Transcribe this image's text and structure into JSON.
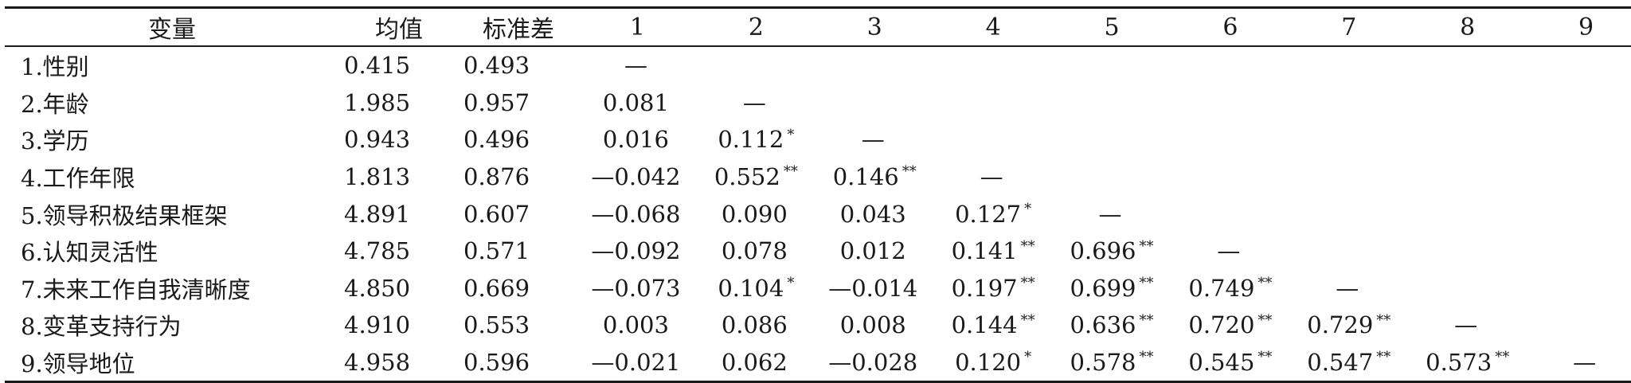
{
  "table": {
    "headers": [
      "变量",
      "均值",
      "标准差",
      "1",
      "2",
      "3",
      "4",
      "5",
      "6",
      "7",
      "8",
      "9"
    ],
    "rows": [
      {
        "label": "1.性别",
        "mean": "0.415",
        "sd": "0.493",
        "cells": [
          {
            "v": "—",
            "s": ""
          },
          {
            "v": "",
            "s": ""
          },
          {
            "v": "",
            "s": ""
          },
          {
            "v": "",
            "s": ""
          },
          {
            "v": "",
            "s": ""
          },
          {
            "v": "",
            "s": ""
          },
          {
            "v": "",
            "s": ""
          },
          {
            "v": "",
            "s": ""
          },
          {
            "v": "",
            "s": ""
          }
        ]
      },
      {
        "label": "2.年龄",
        "mean": "1.985",
        "sd": "0.957",
        "cells": [
          {
            "v": "0.081",
            "s": ""
          },
          {
            "v": "—",
            "s": ""
          },
          {
            "v": "",
            "s": ""
          },
          {
            "v": "",
            "s": ""
          },
          {
            "v": "",
            "s": ""
          },
          {
            "v": "",
            "s": ""
          },
          {
            "v": "",
            "s": ""
          },
          {
            "v": "",
            "s": ""
          },
          {
            "v": "",
            "s": ""
          }
        ]
      },
      {
        "label": "3.学历",
        "mean": "0.943",
        "sd": "0.496",
        "cells": [
          {
            "v": "0.016",
            "s": ""
          },
          {
            "v": "0.112",
            "s": "*"
          },
          {
            "v": "—",
            "s": ""
          },
          {
            "v": "",
            "s": ""
          },
          {
            "v": "",
            "s": ""
          },
          {
            "v": "",
            "s": ""
          },
          {
            "v": "",
            "s": ""
          },
          {
            "v": "",
            "s": ""
          },
          {
            "v": "",
            "s": ""
          }
        ]
      },
      {
        "label": "4.工作年限",
        "mean": "1.813",
        "sd": "0.876",
        "cells": [
          {
            "v": "—0.042",
            "s": ""
          },
          {
            "v": "0.552",
            "s": "**"
          },
          {
            "v": "0.146",
            "s": "**"
          },
          {
            "v": "—",
            "s": ""
          },
          {
            "v": "",
            "s": ""
          },
          {
            "v": "",
            "s": ""
          },
          {
            "v": "",
            "s": ""
          },
          {
            "v": "",
            "s": ""
          },
          {
            "v": "",
            "s": ""
          }
        ]
      },
      {
        "label": "5.领导积极结果框架",
        "mean": "4.891",
        "sd": "0.607",
        "cells": [
          {
            "v": "—0.068",
            "s": ""
          },
          {
            "v": "0.090",
            "s": ""
          },
          {
            "v": "0.043",
            "s": ""
          },
          {
            "v": "0.127",
            "s": "*"
          },
          {
            "v": "—",
            "s": ""
          },
          {
            "v": "",
            "s": ""
          },
          {
            "v": "",
            "s": ""
          },
          {
            "v": "",
            "s": ""
          },
          {
            "v": "",
            "s": ""
          }
        ]
      },
      {
        "label": "6.认知灵活性",
        "mean": "4.785",
        "sd": "0.571",
        "cells": [
          {
            "v": "—0.092",
            "s": ""
          },
          {
            "v": "0.078",
            "s": ""
          },
          {
            "v": "0.012",
            "s": ""
          },
          {
            "v": "0.141",
            "s": "**"
          },
          {
            "v": "0.696",
            "s": "**"
          },
          {
            "v": "—",
            "s": ""
          },
          {
            "v": "",
            "s": ""
          },
          {
            "v": "",
            "s": ""
          },
          {
            "v": "",
            "s": ""
          }
        ]
      },
      {
        "label": "7.未来工作自我清晰度",
        "mean": "4.850",
        "sd": "0.669",
        "cells": [
          {
            "v": "—0.073",
            "s": ""
          },
          {
            "v": "0.104",
            "s": "*"
          },
          {
            "v": "—0.014",
            "s": ""
          },
          {
            "v": "0.197",
            "s": "**"
          },
          {
            "v": "0.699",
            "s": "**"
          },
          {
            "v": "0.749",
            "s": "**"
          },
          {
            "v": "—",
            "s": ""
          },
          {
            "v": "",
            "s": ""
          },
          {
            "v": "",
            "s": ""
          }
        ]
      },
      {
        "label": "8.变革支持行为",
        "mean": "4.910",
        "sd": "0.553",
        "cells": [
          {
            "v": "0.003",
            "s": ""
          },
          {
            "v": "0.086",
            "s": ""
          },
          {
            "v": "0.008",
            "s": ""
          },
          {
            "v": "0.144",
            "s": "**"
          },
          {
            "v": "0.636",
            "s": "**"
          },
          {
            "v": "0.720",
            "s": "**"
          },
          {
            "v": "0.729",
            "s": "**"
          },
          {
            "v": "—",
            "s": ""
          },
          {
            "v": "",
            "s": ""
          }
        ]
      },
      {
        "label": "9.领导地位",
        "mean": "4.958",
        "sd": "0.596",
        "cells": [
          {
            "v": "—0.021",
            "s": ""
          },
          {
            "v": "0.062",
            "s": ""
          },
          {
            "v": "—0.028",
            "s": ""
          },
          {
            "v": "0.120",
            "s": "*"
          },
          {
            "v": "0.578",
            "s": "**"
          },
          {
            "v": "0.545",
            "s": "**"
          },
          {
            "v": "0.547",
            "s": "**"
          },
          {
            "v": "0.573",
            "s": "**"
          },
          {
            "v": "—",
            "s": ""
          }
        ]
      }
    ]
  }
}
